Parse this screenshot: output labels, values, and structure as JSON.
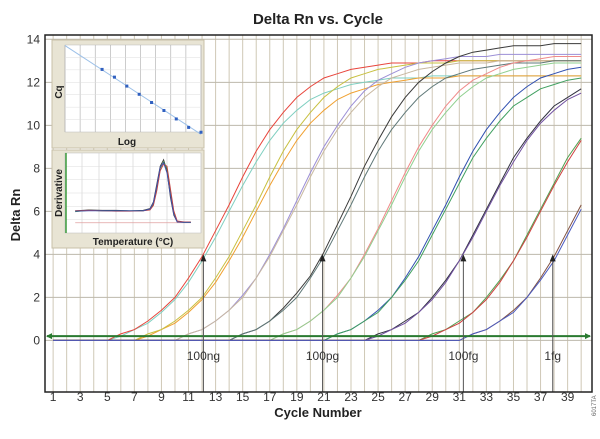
{
  "chart_data": [
    {
      "type": "line",
      "title": "Delta Rn vs. Cycle",
      "xlabel": "Cycle Number",
      "ylabel": "Delta Rn",
      "xlim": [
        0.4,
        40.8
      ],
      "ylim": [
        -2.4,
        14.2
      ],
      "xticks": [
        1,
        3,
        5,
        7,
        9,
        11,
        13,
        15,
        17,
        19,
        21,
        23,
        25,
        27,
        29,
        31,
        33,
        35,
        37,
        39
      ],
      "yticks": [
        0,
        2,
        4,
        6,
        8,
        10,
        12,
        14
      ],
      "grid": true,
      "threshold": 0.2,
      "threshold_color": "#2a7a30",
      "annotations": [
        {
          "text": "100ng",
          "cycle": 12.1,
          "value": 4
        },
        {
          "text": "100pg",
          "cycle": 20.9,
          "value": 4
        },
        {
          "text": "100fg",
          "cycle": 31.3,
          "value": 4
        },
        {
          "text": "1fg",
          "cycle": 37.9,
          "value": 4
        }
      ],
      "x": [
        1,
        2,
        3,
        4,
        5,
        6,
        7,
        8,
        9,
        10,
        11,
        12,
        13,
        14,
        15,
        16,
        17,
        18,
        19,
        20,
        21,
        22,
        23,
        24,
        25,
        26,
        27,
        28,
        29,
        30,
        31,
        32,
        33,
        34,
        35,
        36,
        37,
        38,
        39,
        40
      ],
      "series": [
        {
          "color": "#7fcfc0",
          "values": [
            0,
            0,
            0,
            0,
            0,
            0.2,
            0.5,
            0.8,
            1.3,
            1.9,
            2.7,
            3.7,
            4.8,
            6.0,
            7.2,
            8.3,
            9.3,
            10.1,
            10.7,
            11.2,
            11.5,
            11.7,
            11.9,
            12.0,
            12.1,
            12.2,
            12.2,
            12.2,
            12.3,
            12.3,
            12.3,
            12.3,
            12.3,
            12.3,
            12.3,
            12.3,
            12.3,
            12.3,
            12.3,
            12.3
          ]
        },
        {
          "color": "#e8453c",
          "values": [
            0,
            0,
            0,
            0,
            0,
            0.3,
            0.5,
            0.9,
            1.4,
            2.0,
            2.9,
            3.9,
            5.1,
            6.3,
            7.6,
            8.8,
            9.8,
            10.6,
            11.3,
            11.8,
            12.2,
            12.4,
            12.6,
            12.7,
            12.8,
            12.9,
            12.9,
            12.9,
            13,
            13,
            13,
            13,
            13,
            13,
            13,
            13,
            13,
            13,
            13,
            13
          ]
        },
        {
          "color": "#f0a030",
          "values": [
            0,
            0,
            0,
            0,
            0,
            0,
            0,
            0.2,
            0.5,
            0.8,
            1.3,
            1.9,
            2.7,
            3.7,
            4.8,
            6.0,
            7.2,
            8.3,
            9.3,
            10.1,
            10.7,
            11.2,
            11.5,
            11.7,
            11.9,
            12.0,
            12.1,
            12.2,
            12.2,
            12.2,
            12.3,
            12.3,
            12.3,
            12.3,
            12.3,
            12.3,
            12.3,
            12.3,
            12.3,
            12.3
          ]
        },
        {
          "color": "#c8c040",
          "values": [
            0,
            0,
            0,
            0,
            0,
            0,
            0,
            0.3,
            0.5,
            0.9,
            1.4,
            2.0,
            2.9,
            3.9,
            5.1,
            6.3,
            7.6,
            8.8,
            9.8,
            10.6,
            11.3,
            11.8,
            12.2,
            12.4,
            12.6,
            12.7,
            12.8,
            12.9,
            12.9,
            12.9,
            13,
            13,
            13,
            13,
            13,
            13,
            13,
            13,
            13,
            13
          ]
        },
        {
          "color": "#9c8fd6",
          "values": [
            0,
            0,
            0,
            0,
            0,
            0,
            0,
            0,
            0,
            0,
            0.3,
            0.5,
            0.9,
            1.4,
            2.1,
            2.9,
            4.0,
            5.2,
            6.5,
            7.8,
            9.0,
            10.0,
            10.9,
            11.6,
            12.1,
            12.4,
            12.7,
            12.9,
            13.0,
            13.1,
            13.2,
            13.2,
            13.2,
            13.3,
            13.3,
            13.3,
            13.3,
            13.3,
            13.3,
            13.3
          ]
        },
        {
          "color": "#c8b8a0",
          "values": [
            0,
            0,
            0,
            0,
            0,
            0,
            0,
            0,
            0,
            0,
            0.3,
            0.5,
            0.9,
            1.4,
            2.0,
            2.9,
            3.9,
            5.1,
            6.3,
            7.6,
            8.8,
            9.8,
            10.6,
            11.3,
            11.8,
            12.2,
            12.4,
            12.6,
            12.7,
            12.8,
            12.9,
            12.9,
            12.9,
            13,
            13,
            13,
            13,
            13,
            13,
            13
          ]
        },
        {
          "color": "#3a3a3a",
          "values": [
            0,
            0,
            0,
            0,
            0,
            0,
            0,
            0,
            0,
            0,
            0,
            0,
            0,
            0,
            0.3,
            0.5,
            0.9,
            1.5,
            2.2,
            3.0,
            4.1,
            5.4,
            6.7,
            8.1,
            9.3,
            10.4,
            11.3,
            12.0,
            12.5,
            12.9,
            13.2,
            13.4,
            13.5,
            13.6,
            13.7,
            13.7,
            13.7,
            13.8,
            13.8,
            13.8
          ]
        },
        {
          "color": "#5f7878",
          "values": [
            0,
            0,
            0,
            0,
            0,
            0,
            0,
            0,
            0,
            0,
            0,
            0,
            0,
            0,
            0.3,
            0.5,
            0.9,
            1.4,
            2.0,
            2.9,
            3.9,
            5.1,
            6.3,
            7.6,
            8.8,
            9.8,
            10.6,
            11.3,
            11.8,
            12.2,
            12.4,
            12.6,
            12.7,
            12.8,
            12.9,
            12.9,
            12.9,
            13,
            13,
            13
          ]
        },
        {
          "color": "#f08a8a",
          "values": [
            0,
            0,
            0,
            0,
            0,
            0,
            0,
            0,
            0,
            0,
            0,
            0,
            0,
            0,
            0,
            0,
            0,
            0.3,
            0.5,
            0.9,
            1.4,
            2.1,
            2.9,
            4.0,
            5.2,
            6.5,
            7.8,
            9.0,
            10.0,
            10.9,
            11.6,
            12.1,
            12.4,
            12.7,
            12.9,
            13.0,
            13.1,
            13.2,
            13.2,
            13.2
          ]
        },
        {
          "color": "#90d090",
          "values": [
            0,
            0,
            0,
            0,
            0,
            0,
            0,
            0,
            0,
            0,
            0,
            0,
            0,
            0,
            0,
            0,
            0,
            0.3,
            0.5,
            0.9,
            1.4,
            2.0,
            2.9,
            3.9,
            5.1,
            6.3,
            7.6,
            8.8,
            9.8,
            10.6,
            11.3,
            11.8,
            12.2,
            12.4,
            12.6,
            12.7,
            12.8,
            12.9,
            12.9,
            12.9
          ]
        },
        {
          "color": "#3050b0",
          "values": [
            0,
            0,
            0,
            0,
            0,
            0,
            0,
            0,
            0,
            0,
            0,
            0,
            0,
            0,
            0,
            0,
            0,
            0,
            0,
            0,
            0,
            0.3,
            0.5,
            0.9,
            1.4,
            2.0,
            2.9,
            3.9,
            5.1,
            6.3,
            7.6,
            8.8,
            9.8,
            10.6,
            11.3,
            11.8,
            12.2,
            12.4,
            12.6,
            12.7
          ]
        },
        {
          "color": "#40a060",
          "values": [
            0,
            0,
            0,
            0,
            0,
            0,
            0,
            0,
            0,
            0,
            0,
            0,
            0,
            0,
            0,
            0,
            0,
            0,
            0,
            0,
            0,
            0.3,
            0.5,
            0.9,
            1.3,
            2.0,
            2.8,
            3.7,
            4.9,
            6.1,
            7.3,
            8.5,
            9.4,
            10.2,
            10.9,
            11.3,
            11.7,
            11.9,
            12.1,
            12.2
          ]
        },
        {
          "color": "#303040",
          "values": [
            0,
            0,
            0,
            0,
            0,
            0,
            0,
            0,
            0,
            0,
            0,
            0,
            0,
            0,
            0,
            0,
            0,
            0,
            0,
            0,
            0,
            0,
            0,
            0,
            0.3,
            0.5,
            0.9,
            1.3,
            2.0,
            2.8,
            3.7,
            4.9,
            6.1,
            7.3,
            8.5,
            9.4,
            10.2,
            10.9,
            11.3,
            11.7
          ]
        },
        {
          "color": "#7050a0",
          "values": [
            0,
            0,
            0,
            0,
            0,
            0,
            0,
            0,
            0,
            0,
            0,
            0,
            0,
            0,
            0,
            0,
            0,
            0,
            0,
            0,
            0,
            0,
            0,
            0,
            0.2,
            0.5,
            0.8,
            1.3,
            1.9,
            2.7,
            3.7,
            4.8,
            6.0,
            7.2,
            8.3,
            9.3,
            10.1,
            10.7,
            11.2,
            11.5
          ]
        },
        {
          "color": "#50a050",
          "values": [
            0,
            0,
            0,
            0,
            0,
            0,
            0,
            0,
            0,
            0,
            0,
            0,
            0,
            0,
            0,
            0,
            0,
            0,
            0,
            0,
            0,
            0,
            0,
            0,
            0,
            0,
            0,
            0,
            0.3,
            0.5,
            0.9,
            1.3,
            2.0,
            2.8,
            3.7,
            4.9,
            6.1,
            7.3,
            8.5,
            9.4
          ]
        },
        {
          "color": "#d04040",
          "values": [
            0,
            0,
            0,
            0,
            0,
            0,
            0,
            0,
            0,
            0,
            0,
            0,
            0,
            0,
            0,
            0,
            0,
            0,
            0,
            0,
            0,
            0,
            0,
            0,
            0,
            0,
            0,
            0,
            0.2,
            0.5,
            0.8,
            1.3,
            1.9,
            2.7,
            3.7,
            4.8,
            6.0,
            7.2,
            8.3,
            9.3
          ]
        },
        {
          "color": "#805040",
          "values": [
            0,
            0,
            0,
            0,
            0,
            0,
            0,
            0,
            0,
            0,
            0,
            0,
            0,
            0,
            0,
            0,
            0,
            0,
            0,
            0,
            0,
            0,
            0,
            0,
            0,
            0,
            0,
            0,
            0,
            0,
            0,
            0.3,
            0.5,
            0.9,
            1.4,
            2.0,
            2.9,
            3.9,
            5.1,
            6.3
          ]
        },
        {
          "color": "#4a5ac0",
          "values": [
            0,
            0,
            0,
            0,
            0,
            0,
            0,
            0,
            0,
            0,
            0,
            0,
            0,
            0,
            0,
            0,
            0,
            0,
            0,
            0,
            0,
            0,
            0,
            0,
            0,
            0,
            0,
            0,
            0,
            0,
            0,
            0.3,
            0.5,
            0.9,
            1.3,
            2.0,
            2.8,
            3.7,
            4.9,
            6.1
          ]
        }
      ]
    },
    {
      "type": "scatter",
      "xlabel": "Log",
      "ylabel": "Cq",
      "xlim": [
        -9,
        2
      ],
      "ylim": [
        12,
        48
      ],
      "x": [
        -6,
        -5,
        -4,
        -3,
        -2,
        -1,
        0,
        1,
        2
      ],
      "y": [
        37.9,
        34.7,
        31.0,
        27.6,
        24.2,
        20.9,
        17.4,
        13.9,
        11.9
      ],
      "point_color": "#3060c0",
      "line_color": "#9cc0e8"
    },
    {
      "type": "line",
      "xlabel": "Temperature (°C)",
      "ylabel": "Derivative",
      "xlim": [
        55,
        95
      ],
      "ylim": [
        -0.2,
        1.6
      ],
      "x": [
        58,
        62,
        66,
        70,
        74,
        78,
        80,
        81,
        82,
        83,
        84,
        85,
        86,
        87,
        88,
        90,
        92
      ],
      "series": [
        {
          "color": "#404040",
          "values": [
            0.3,
            0.32,
            0.31,
            0.31,
            0.3,
            0.31,
            0.35,
            0.5,
            0.9,
            1.3,
            1.45,
            1.2,
            0.6,
            0.2,
            0.05,
            0.04,
            0.04
          ]
        },
        {
          "color": "#3a8a3a",
          "values": [
            0.28,
            0.31,
            0.3,
            0.3,
            0.3,
            0.3,
            0.33,
            0.45,
            0.8,
            1.25,
            1.4,
            1.25,
            0.7,
            0.25,
            0.06,
            0.04,
            0.04
          ]
        },
        {
          "color": "#c04040",
          "values": [
            0.3,
            0.31,
            0.3,
            0.29,
            0.29,
            0.3,
            0.32,
            0.42,
            0.75,
            1.2,
            1.35,
            1.3,
            0.8,
            0.3,
            0.07,
            0.05,
            0.05
          ]
        },
        {
          "color": "#4050b0",
          "values": [
            0.29,
            0.3,
            0.3,
            0.3,
            0.3,
            0.3,
            0.34,
            0.48,
            0.85,
            1.28,
            1.38,
            1.15,
            0.65,
            0.22,
            0.05,
            0.04,
            0.04
          ]
        }
      ]
    }
  ],
  "figure_code": "6017TA"
}
